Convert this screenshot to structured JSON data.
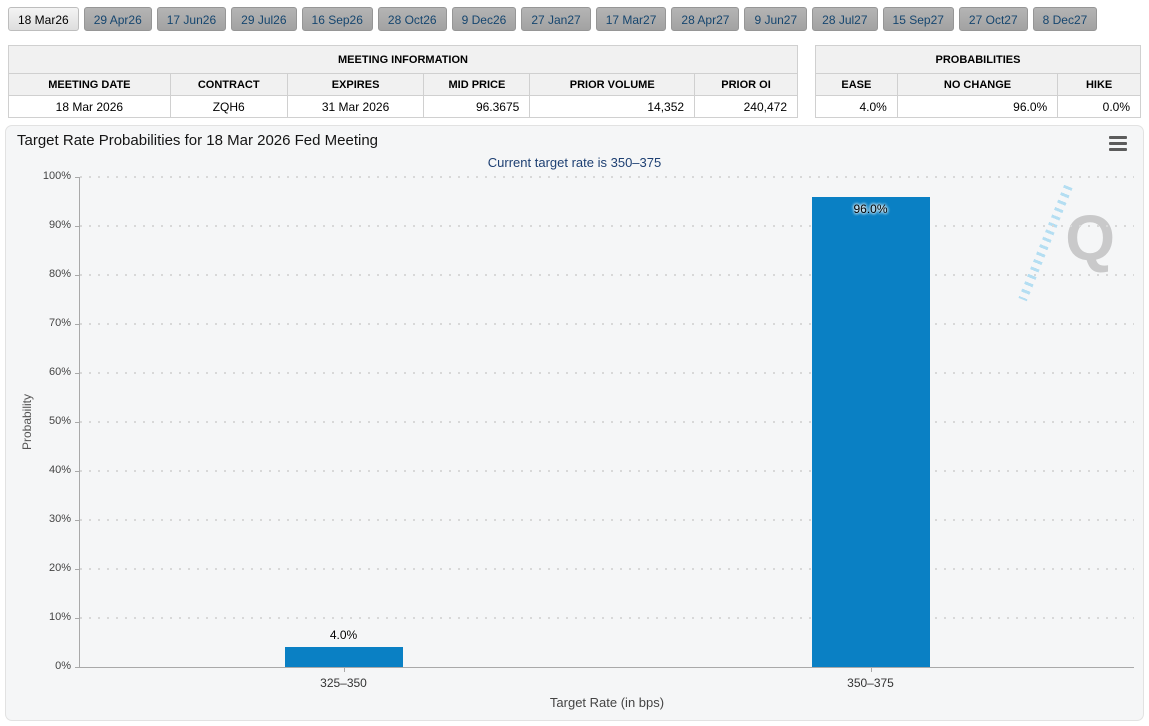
{
  "tabs": {
    "items": [
      {
        "label": "18 Mar26",
        "active": true
      },
      {
        "label": "29 Apr26",
        "active": false
      },
      {
        "label": "17 Jun26",
        "active": false
      },
      {
        "label": "29 Jul26",
        "active": false
      },
      {
        "label": "16 Sep26",
        "active": false
      },
      {
        "label": "28 Oct26",
        "active": false
      },
      {
        "label": "9 Dec26",
        "active": false
      },
      {
        "label": "27 Jan27",
        "active": false
      },
      {
        "label": "17 Mar27",
        "active": false
      },
      {
        "label": "28 Apr27",
        "active": false
      },
      {
        "label": "9 Jun27",
        "active": false
      },
      {
        "label": "28 Jul27",
        "active": false
      },
      {
        "label": "15 Sep27",
        "active": false
      },
      {
        "label": "27 Oct27",
        "active": false
      },
      {
        "label": "8 Dec27",
        "active": false
      }
    ]
  },
  "meeting_information": {
    "title": "MEETING INFORMATION",
    "columns": [
      "MEETING DATE",
      "CONTRACT",
      "EXPIRES",
      "MID PRICE",
      "PRIOR VOLUME",
      "PRIOR OI"
    ],
    "values": [
      "18 Mar 2026",
      "ZQH6",
      "31 Mar 2026",
      "96.3675",
      "14,352",
      "240,472"
    ]
  },
  "probabilities": {
    "title": "PROBABILITIES",
    "columns": [
      "EASE",
      "NO CHANGE",
      "HIKE"
    ],
    "values": [
      "4.0%",
      "96.0%",
      "0.0%"
    ]
  },
  "chart": {
    "title": "Target Rate Probabilities for 18 Mar 2026 Fed Meeting",
    "subtitle": "Current target rate is 350–375",
    "menu_icon": "hamburger-menu-icon",
    "watermark_icon": "quikstrike-q-watermark",
    "watermark_letter": "Q"
  },
  "chart_data": {
    "type": "bar",
    "categories": [
      "325–350",
      "350–375"
    ],
    "values": [
      4.0,
      96.0
    ],
    "bar_labels": [
      "4.0%",
      "96.0%"
    ],
    "title": "Target Rate Probabilities for 18 Mar 2026 Fed Meeting",
    "subtitle": "Current target rate is 350–375",
    "xlabel": "Target Rate (in bps)",
    "ylabel": "Probability",
    "ylim": [
      0,
      100
    ],
    "ytick_step": 10,
    "ytick_suffix": "%",
    "grid": "dotted-horizontal",
    "legend": "none",
    "bar_color": "#0a80c4"
  },
  "colors": {
    "bar": "#0a80c4",
    "panel_background": "#f5f6f7",
    "subtitle_text": "#1d3f72",
    "inactive_tab": "#a9a9a9",
    "gridline": "#d8d8d8"
  }
}
